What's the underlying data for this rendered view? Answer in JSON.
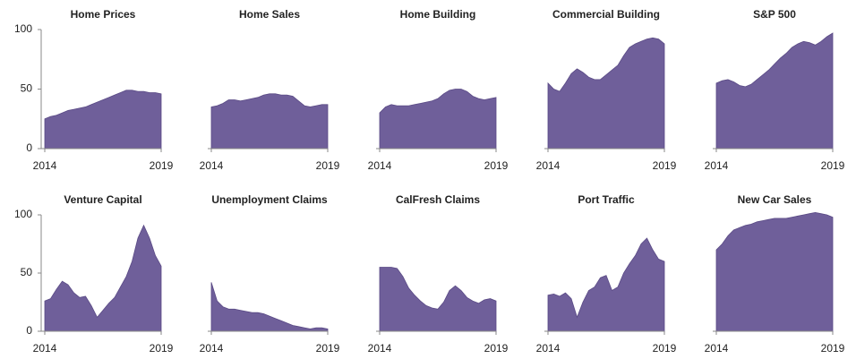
{
  "chart_data": [
    {
      "type": "area",
      "title": "Home Prices",
      "color": "#6f5f9a",
      "xlim": [
        2014,
        2019
      ],
      "xticks": [
        2014,
        2019
      ],
      "ylim": [
        0,
        100
      ],
      "yticks": [
        0,
        50,
        100
      ],
      "x": [
        2014,
        2014.25,
        2014.5,
        2014.75,
        2015,
        2015.25,
        2015.5,
        2015.75,
        2016,
        2016.25,
        2016.5,
        2016.75,
        2017,
        2017.25,
        2017.5,
        2017.75,
        2018,
        2018.25,
        2018.5,
        2018.75,
        2019
      ],
      "values": [
        25,
        27,
        28,
        30,
        32,
        33,
        34,
        35,
        37,
        39,
        41,
        43,
        45,
        47,
        49,
        49,
        48,
        48,
        47,
        47,
        46
      ]
    },
    {
      "type": "area",
      "title": "Home Sales",
      "color": "#6f5f9a",
      "xlim": [
        2014,
        2019
      ],
      "xticks": [
        2014,
        2019
      ],
      "ylim": [
        0,
        100
      ],
      "x": [
        2014,
        2014.25,
        2014.5,
        2014.75,
        2015,
        2015.25,
        2015.5,
        2015.75,
        2016,
        2016.25,
        2016.5,
        2016.75,
        2017,
        2017.25,
        2017.5,
        2017.75,
        2018,
        2018.25,
        2018.5,
        2018.75,
        2019
      ],
      "values": [
        35,
        36,
        38,
        41,
        41,
        40,
        41,
        42,
        43,
        45,
        46,
        46,
        45,
        45,
        44,
        40,
        36,
        35,
        36,
        37,
        37
      ]
    },
    {
      "type": "area",
      "title": "Home Building",
      "color": "#6f5f9a",
      "xlim": [
        2014,
        2019
      ],
      "xticks": [
        2014,
        2019
      ],
      "ylim": [
        0,
        100
      ],
      "x": [
        2014,
        2014.25,
        2014.5,
        2014.75,
        2015,
        2015.25,
        2015.5,
        2015.75,
        2016,
        2016.25,
        2016.5,
        2016.75,
        2017,
        2017.25,
        2017.5,
        2017.75,
        2018,
        2018.25,
        2018.5,
        2018.75,
        2019
      ],
      "values": [
        30,
        35,
        37,
        36,
        36,
        36,
        37,
        38,
        39,
        40,
        42,
        46,
        49,
        50,
        50,
        48,
        44,
        42,
        41,
        42,
        43
      ]
    },
    {
      "type": "area",
      "title": "Commercial Building",
      "color": "#6f5f9a",
      "xlim": [
        2014,
        2019
      ],
      "xticks": [
        2014,
        2019
      ],
      "ylim": [
        0,
        100
      ],
      "x": [
        2014,
        2014.25,
        2014.5,
        2014.75,
        2015,
        2015.25,
        2015.5,
        2015.75,
        2016,
        2016.25,
        2016.5,
        2016.75,
        2017,
        2017.25,
        2017.5,
        2017.75,
        2018,
        2018.25,
        2018.5,
        2018.75,
        2019
      ],
      "values": [
        55,
        50,
        48,
        55,
        63,
        67,
        64,
        60,
        58,
        58,
        62,
        66,
        70,
        78,
        85,
        88,
        90,
        92,
        93,
        92,
        88
      ]
    },
    {
      "type": "area",
      "title": "S&P 500",
      "color": "#6f5f9a",
      "xlim": [
        2014,
        2019
      ],
      "xticks": [
        2014,
        2019
      ],
      "ylim": [
        0,
        100
      ],
      "x": [
        2014,
        2014.25,
        2014.5,
        2014.75,
        2015,
        2015.25,
        2015.5,
        2015.75,
        2016,
        2016.25,
        2016.5,
        2016.75,
        2017,
        2017.25,
        2017.5,
        2017.75,
        2018,
        2018.25,
        2018.5,
        2018.75,
        2019
      ],
      "values": [
        55,
        57,
        58,
        56,
        53,
        52,
        54,
        58,
        62,
        66,
        71,
        76,
        80,
        85,
        88,
        90,
        89,
        87,
        90,
        94,
        97
      ]
    },
    {
      "type": "area",
      "title": "Venture Capital",
      "color": "#6f5f9a",
      "xlim": [
        2014,
        2019
      ],
      "xticks": [
        2014,
        2019
      ],
      "ylim": [
        0,
        100
      ],
      "yticks": [
        0,
        50,
        100
      ],
      "x": [
        2014,
        2014.25,
        2014.5,
        2014.75,
        2015,
        2015.25,
        2015.5,
        2015.75,
        2016,
        2016.25,
        2016.5,
        2016.75,
        2017,
        2017.25,
        2017.5,
        2017.75,
        2018,
        2018.25,
        2018.5,
        2018.75,
        2019
      ],
      "values": [
        26,
        28,
        36,
        43,
        40,
        33,
        29,
        30,
        22,
        12,
        18,
        24,
        29,
        38,
        47,
        60,
        80,
        91,
        80,
        65,
        56
      ]
    },
    {
      "type": "area",
      "title": "Unemployment Claims",
      "color": "#6f5f9a",
      "xlim": [
        2014,
        2019
      ],
      "xticks": [
        2014,
        2019
      ],
      "ylim": [
        0,
        100
      ],
      "x": [
        2014,
        2014.25,
        2014.5,
        2014.75,
        2015,
        2015.25,
        2015.5,
        2015.75,
        2016,
        2016.25,
        2016.5,
        2016.75,
        2017,
        2017.25,
        2017.5,
        2017.75,
        2018,
        2018.25,
        2018.5,
        2018.75,
        2019
      ],
      "values": [
        42,
        26,
        21,
        19,
        19,
        18,
        17,
        16,
        16,
        15,
        13,
        11,
        9,
        7,
        5,
        4,
        3,
        2,
        3,
        3,
        2
      ]
    },
    {
      "type": "area",
      "title": "CalFresh Claims",
      "color": "#6f5f9a",
      "xlim": [
        2014,
        2019
      ],
      "xticks": [
        2014,
        2019
      ],
      "ylim": [
        0,
        100
      ],
      "x": [
        2014,
        2014.25,
        2014.5,
        2014.75,
        2015,
        2015.25,
        2015.5,
        2015.75,
        2016,
        2016.25,
        2016.5,
        2016.75,
        2017,
        2017.25,
        2017.5,
        2017.75,
        2018,
        2018.25,
        2018.5,
        2018.75,
        2019
      ],
      "values": [
        55,
        55,
        55,
        54,
        47,
        37,
        31,
        26,
        22,
        20,
        19,
        25,
        35,
        39,
        35,
        29,
        26,
        24,
        27,
        28,
        26
      ]
    },
    {
      "type": "area",
      "title": "Port Traffic",
      "color": "#6f5f9a",
      "xlim": [
        2014,
        2019
      ],
      "xticks": [
        2014,
        2019
      ],
      "ylim": [
        0,
        100
      ],
      "x": [
        2014,
        2014.25,
        2014.5,
        2014.75,
        2015,
        2015.25,
        2015.5,
        2015.75,
        2016,
        2016.25,
        2016.5,
        2016.75,
        2017,
        2017.25,
        2017.5,
        2017.75,
        2018,
        2018.25,
        2018.5,
        2018.75,
        2019
      ],
      "values": [
        31,
        32,
        30,
        33,
        28,
        12,
        25,
        35,
        38,
        46,
        48,
        35,
        38,
        50,
        58,
        65,
        75,
        80,
        70,
        62,
        60
      ]
    },
    {
      "type": "area",
      "title": "New Car Sales",
      "color": "#6f5f9a",
      "xlim": [
        2014,
        2019
      ],
      "xticks": [
        2014,
        2019
      ],
      "ylim": [
        0,
        100
      ],
      "x": [
        2014,
        2014.25,
        2014.5,
        2014.75,
        2015,
        2015.25,
        2015.5,
        2015.75,
        2016,
        2016.25,
        2016.5,
        2016.75,
        2017,
        2017.25,
        2017.5,
        2017.75,
        2018,
        2018.25,
        2018.5,
        2018.75,
        2019
      ],
      "values": [
        70,
        75,
        82,
        87,
        89,
        91,
        92,
        94,
        95,
        96,
        97,
        97,
        97,
        98,
        99,
        100,
        101,
        102,
        101,
        100,
        98
      ]
    }
  ]
}
